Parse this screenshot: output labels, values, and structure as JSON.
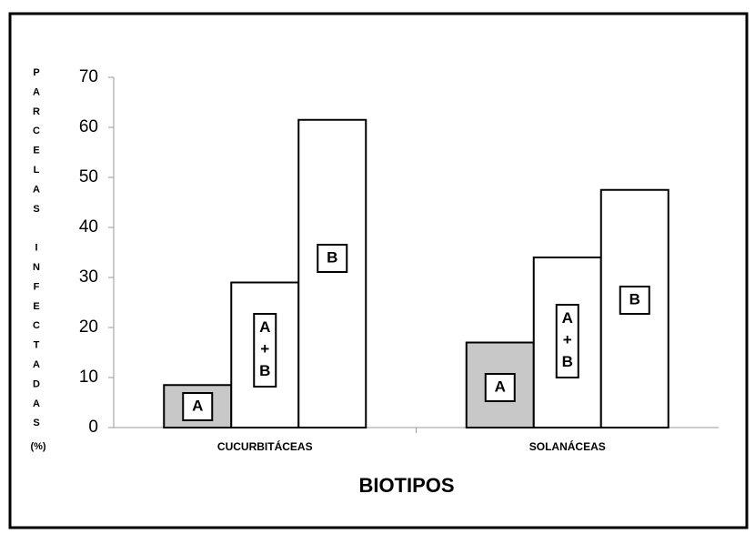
{
  "chart_data": {
    "type": "bar",
    "y_label": "PARCELAS INFECTADAS",
    "y_unit": "(%)",
    "x_label": "BIOTIPOS",
    "categories": [
      "CUCURBITÁCEAS",
      "SOLANÁCEAS"
    ],
    "series": [
      {
        "name": "A",
        "color": "#c8c8c8",
        "values": [
          8.5,
          17
        ]
      },
      {
        "name": "A+B",
        "color": "#ffffff",
        "values": [
          29,
          34
        ]
      },
      {
        "name": "B",
        "color": "#ffffff",
        "values": [
          61.5,
          47.5
        ]
      }
    ],
    "ylim": [
      0,
      70
    ],
    "yticks": [
      0,
      10,
      20,
      30,
      40,
      50,
      60,
      70
    ]
  }
}
